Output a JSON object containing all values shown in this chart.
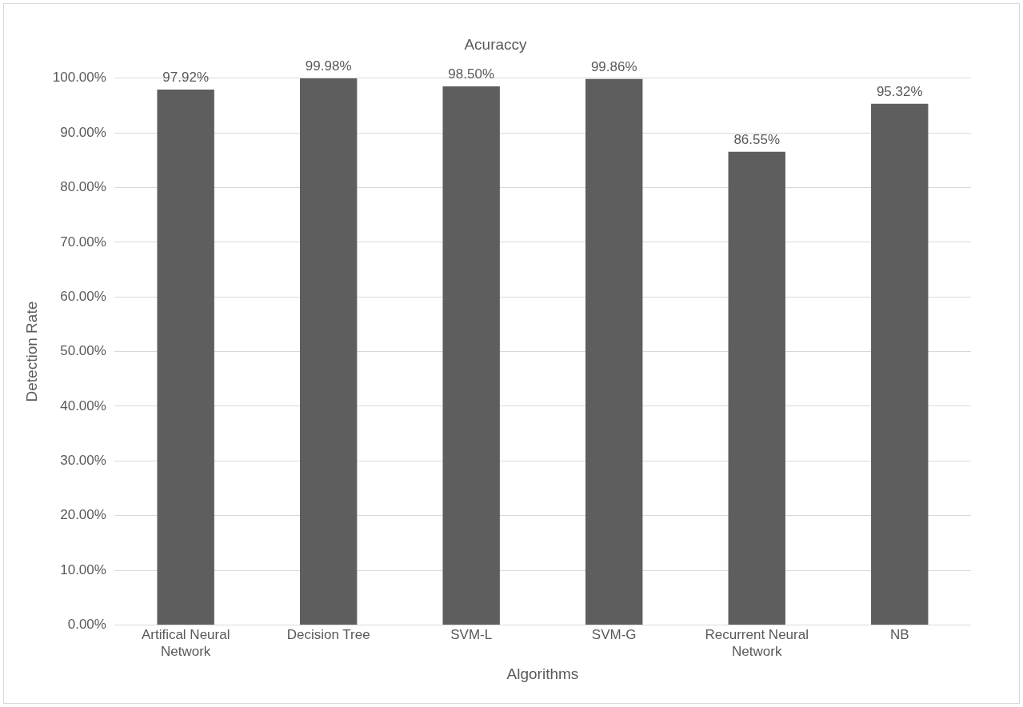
{
  "chart_data": {
    "type": "bar",
    "title": "Acuraccy",
    "xlabel": "Algorithms",
    "ylabel": "Detection Rate",
    "categories": [
      "Artifical Neural Network",
      "Decision Tree",
      "SVM-L",
      "SVM-G",
      "Recurrent Neural Network",
      "NB"
    ],
    "values": [
      97.92,
      99.98,
      98.5,
      99.86,
      86.55,
      95.32
    ],
    "value_labels": [
      "97.92%",
      "99.98%",
      "98.50%",
      "99.86%",
      "86.55%",
      "95.32%"
    ],
    "color": "#5e5e5e",
    "ylim": [
      0,
      100
    ],
    "yticks": [
      {
        "value": 0,
        "label": "0.00%"
      },
      {
        "value": 10,
        "label": "10.00%"
      },
      {
        "value": 20,
        "label": "20.00%"
      },
      {
        "value": 30,
        "label": "30.00%"
      },
      {
        "value": 40,
        "label": "40.00%"
      },
      {
        "value": 50,
        "label": "50.00%"
      },
      {
        "value": 60,
        "label": "60.00%"
      },
      {
        "value": 70,
        "label": "70.00%"
      },
      {
        "value": 80,
        "label": "80.00%"
      },
      {
        "value": 90,
        "label": "90.00%"
      },
      {
        "value": 100,
        "label": "100.00%"
      }
    ],
    "grid": "y"
  }
}
